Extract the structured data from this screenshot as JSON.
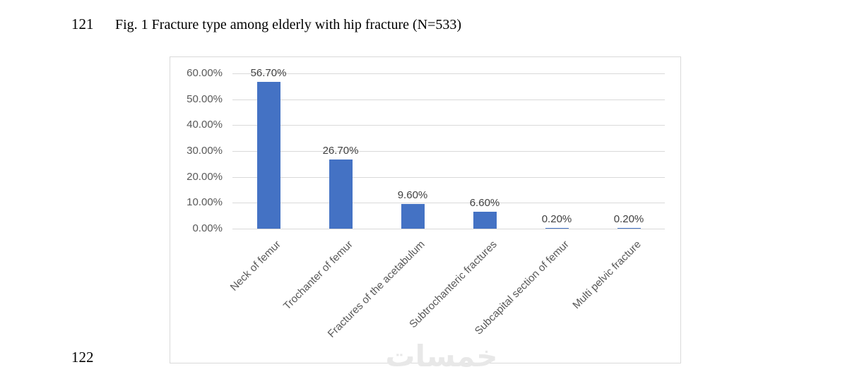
{
  "page": {
    "line_numbers": {
      "top": "121",
      "bottom": "122"
    },
    "caption": "Fig. 1 Fracture type among elderly with hip fracture (N=533)",
    "watermark": "خمسات"
  },
  "chart_data": {
    "type": "bar",
    "title": "Fig. 1 Fracture type among elderly with hip fracture (N=533)",
    "xlabel": "",
    "ylabel": "",
    "categories": [
      "Neck of femur",
      "Trochanter of femur",
      "Fractures of the acetabulum",
      "Subtrochanteric fractures",
      "Subcapital section of femur",
      "Multi pelvic fracture"
    ],
    "values": [
      56.7,
      26.7,
      9.6,
      6.6,
      0.2,
      0.2
    ],
    "data_labels": [
      "56.70%",
      "26.70%",
      "9.60%",
      "6.60%",
      "0.20%",
      "0.20%"
    ],
    "y_ticks": [
      "60.00%",
      "50.00%",
      "40.00%",
      "30.00%",
      "20.00%",
      "10.00%",
      "0.00%"
    ],
    "ylim": [
      0,
      60
    ],
    "grid": true,
    "legend_position": "none",
    "bar_color": "#4472C4",
    "gridline_color": "#D9D9D9",
    "axis_text_color": "#595959",
    "data_label_color": "#404040"
  }
}
